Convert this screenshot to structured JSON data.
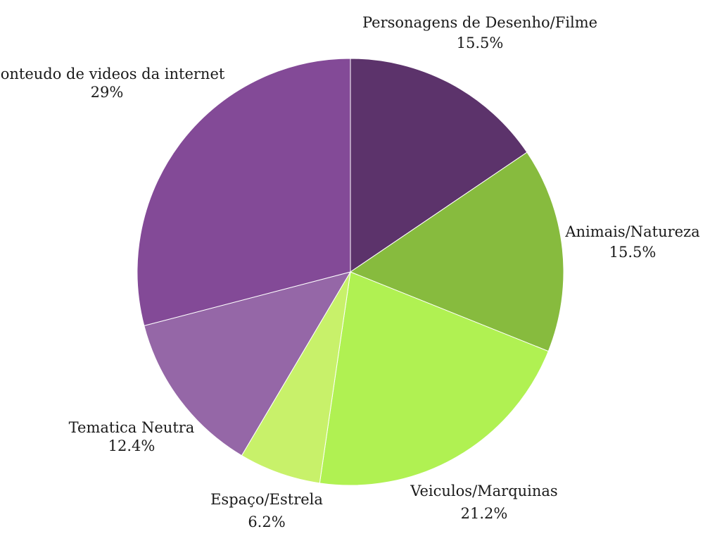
{
  "chart_data": {
    "type": "pie",
    "title": "",
    "slices": [
      {
        "label": "Personagens de Desenho/Filme",
        "value": 15.5,
        "display": "15.5%",
        "color": "#5c336b"
      },
      {
        "label": "Animais/Natureza",
        "value": 15.5,
        "display": "15.5%",
        "color": "#87bb3e"
      },
      {
        "label": "Veiculos/Marquinas",
        "value": 21.2,
        "display": "21.2%",
        "color": "#b0f152"
      },
      {
        "label": "Espaço/Estrela",
        "value": 6.2,
        "display": "6.2%",
        "color": "#c8f16a"
      },
      {
        "label": "Tematica Neutra",
        "value": 12.4,
        "display": "12.4%",
        "color": "#9567a7"
      },
      {
        "label": "Conteudo de videos da internet",
        "value": 29,
        "display": "29%",
        "color": "#834a97"
      }
    ],
    "start_angle": "top",
    "direction": "clockwise",
    "legend": "none"
  }
}
